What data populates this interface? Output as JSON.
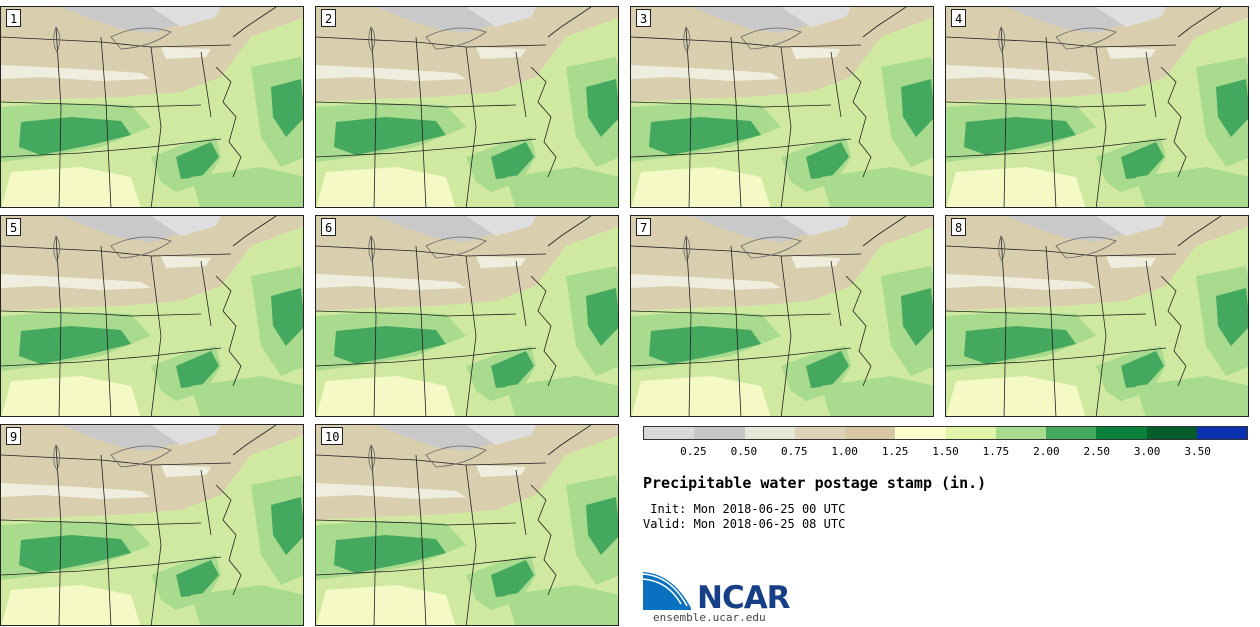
{
  "members": [
    "1",
    "2",
    "3",
    "4",
    "5",
    "6",
    "7",
    "8",
    "9",
    "10"
  ],
  "legend": {
    "colors": [
      "#d9d9d9",
      "#c7c7c7",
      "#e7e7d8",
      "#ddd2b8",
      "#d7c7a2",
      "#fdffcc",
      "#e2f5a9",
      "#a8db8d",
      "#45a85f",
      "#08813c",
      "#045d2a",
      "#0b31b0"
    ],
    "ticks": [
      "0.25",
      "0.50",
      "0.75",
      "1.00",
      "1.25",
      "1.50",
      "1.75",
      "2.00",
      "2.50",
      "3.00",
      "3.50"
    ]
  },
  "title": "Precipitable water postage stamp (in.)",
  "init": " Init: Mon 2018-06-25 00 UTC",
  "valid": "Valid: Mon 2018-06-25 08 UTC",
  "logo": {
    "text": "NCAR",
    "url": "ensemble.ucar.edu"
  }
}
